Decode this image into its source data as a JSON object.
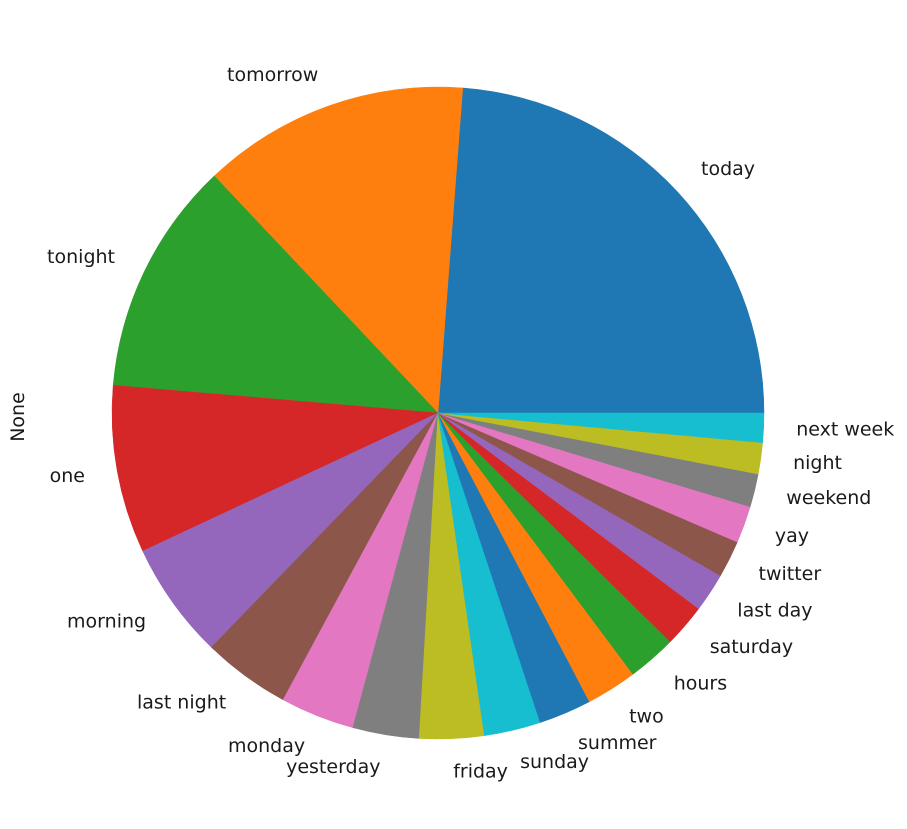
{
  "chart_data": {
    "type": "pie",
    "ylabel": "None",
    "start_angle_deg": 0,
    "direction": "counterclockwise",
    "slices": [
      {
        "label": "today",
        "value": 24.6,
        "color": "#1f77b4"
      },
      {
        "label": "tomorrow",
        "value": 13.7,
        "color": "#ff7f0e"
      },
      {
        "label": "tonight",
        "value": 12.0,
        "color": "#2ca02c"
      },
      {
        "label": "one",
        "value": 8.6,
        "color": "#d62728"
      },
      {
        "label": "morning",
        "value": 6.0,
        "color": "#9467bd"
      },
      {
        "label": "last night",
        "value": 4.5,
        "color": "#8c564b"
      },
      {
        "label": "monday",
        "value": 3.8,
        "color": "#e377c2"
      },
      {
        "label": "yesterday",
        "value": 3.4,
        "color": "#7f7f7f"
      },
      {
        "label": "friday",
        "value": 3.3,
        "color": "#bcbd22"
      },
      {
        "label": "sunday",
        "value": 2.9,
        "color": "#17becf"
      },
      {
        "label": "summer",
        "value": 2.7,
        "color": "#1f77b4"
      },
      {
        "label": "two",
        "value": 2.6,
        "color": "#ff7f0e"
      },
      {
        "label": "hours",
        "value": 2.5,
        "color": "#2ca02c"
      },
      {
        "label": "saturday",
        "value": 2.2,
        "color": "#d62728"
      },
      {
        "label": "last day",
        "value": 2.0,
        "color": "#9467bd"
      },
      {
        "label": "twitter",
        "value": 1.9,
        "color": "#8c564b"
      },
      {
        "label": "yay",
        "value": 1.9,
        "color": "#e377c2"
      },
      {
        "label": "weekend",
        "value": 1.7,
        "color": "#7f7f7f"
      },
      {
        "label": "night",
        "value": 1.6,
        "color": "#bcbd22"
      },
      {
        "label": "next week",
        "value": 1.5,
        "color": "#17becf"
      }
    ]
  }
}
